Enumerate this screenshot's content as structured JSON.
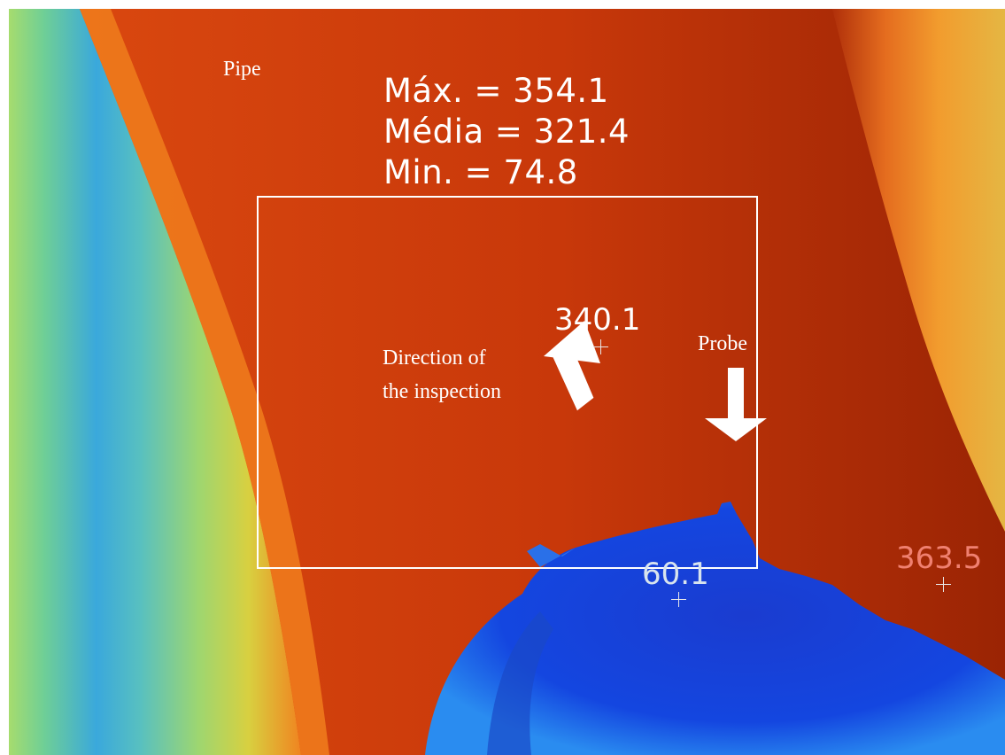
{
  "labels": {
    "pipe": "Pipe",
    "direction_line1": "Direction of",
    "direction_line2": "the inspection",
    "probe": "Probe"
  },
  "stats": {
    "max": "Máx. = 354.1",
    "mean": "Média = 321.4",
    "min": "Min. = 74.8"
  },
  "spot_readings": {
    "center": "340.1",
    "probe_tip": "60.1",
    "right_edge": "363.5"
  },
  "colors": {
    "hot_main": "#cc3a0a",
    "hot_dark": "#a82a05",
    "warm_orange": "#f06a18",
    "cool_green": "#8ed27a",
    "cool_cyan": "#38b4d8",
    "probe_blue": "#1440d8",
    "annotation_white": "#ffffff",
    "right_reading": "#f08070"
  },
  "icons": {
    "direction_arrow": "arrow-up-icon",
    "probe_arrow": "arrow-down-icon",
    "spot_marker": "crosshair-icon"
  }
}
